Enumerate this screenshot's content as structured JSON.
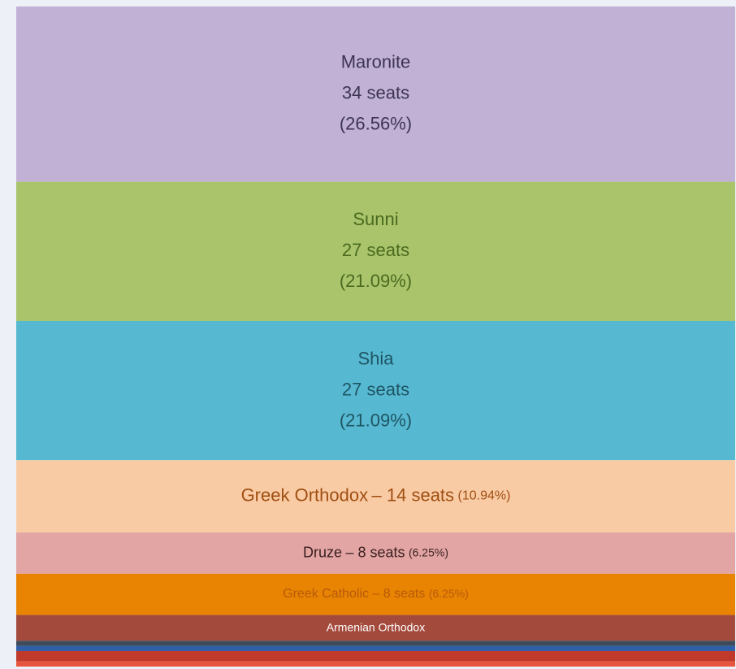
{
  "chart_data": {
    "type": "stacked-block",
    "categories": [
      "Maronite",
      "Sunni",
      "Shia",
      "Greek Orthodox",
      "Druze",
      "Greek Catholic",
      "Armenian Orthodox",
      null,
      null,
      null,
      null
    ],
    "values": [
      34,
      27,
      27,
      14,
      8,
      8,
      5,
      1,
      1,
      2,
      1
    ],
    "value_labels": [
      "34 seats",
      "27 seats",
      "27 seats",
      "– 14 seats",
      "– 8 seats",
      "– 8 seats",
      null,
      null,
      null,
      null,
      null
    ],
    "percent_labels": [
      "(26.56%)",
      "(21.09%)",
      "(21.09%)",
      "(10.94%)",
      "(6.25%)",
      "(6.25%)",
      null,
      null,
      null,
      null,
      null
    ],
    "colors": [
      "#c0b1d5",
      "#a9c46b",
      "#56b9d1",
      "#f9cba4",
      "#e2a5a4",
      "#e88402",
      "#a34a3c",
      "#3f4a5a",
      "#2f5fa8",
      "#c0392b",
      "#e8553e"
    ],
    "text_colors": [
      "#3d3452",
      "#4a6a1f",
      "#1f5564",
      "#a04f12",
      "#3a1f1f",
      "#b85a0a",
      "#ffffff",
      null,
      null,
      null,
      null
    ]
  }
}
